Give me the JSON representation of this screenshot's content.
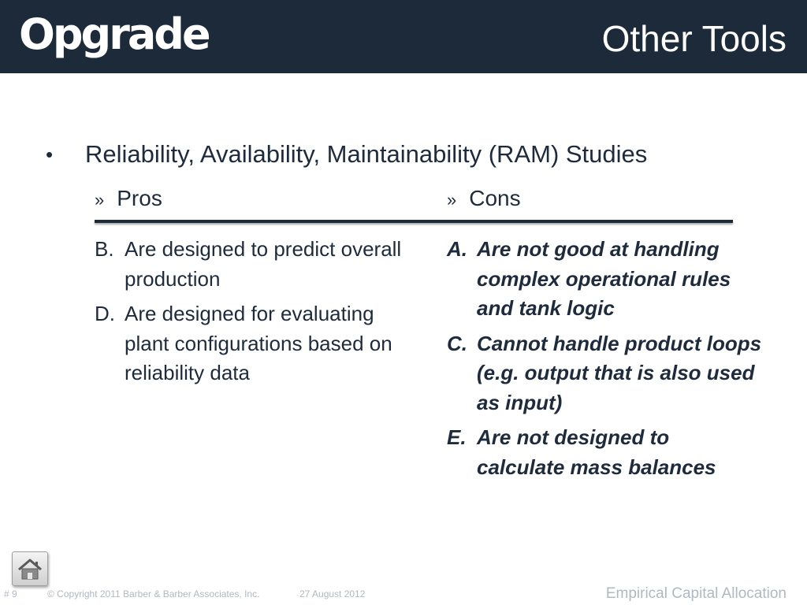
{
  "header": {
    "logo_text": "Opgrade",
    "title": "Other Tools"
  },
  "content": {
    "bullet_symbol": "•",
    "main_bullet": "Reliability, Availability, Maintainability (RAM) Studies",
    "pros": {
      "marker": "»",
      "heading": "Pros",
      "items": [
        {
          "letter": "B.",
          "text": "Are designed to predict overall production"
        },
        {
          "letter": "D.",
          "text": "Are designed for evaluating plant configurations based on reliability data"
        }
      ]
    },
    "cons": {
      "marker": "»",
      "heading": "Cons",
      "items": [
        {
          "letter": "A.",
          "text": "Are not good at handling complex operational rules and tank logic"
        },
        {
          "letter": "C.",
          "text": "Cannot handle product loops (e.g. output that is also used as input)"
        },
        {
          "letter": "E.",
          "text": "Are not designed to calculate mass balances"
        }
      ]
    }
  },
  "footer": {
    "slide_number": "# 9",
    "copyright": "© Copyright 2011 Barber & Barber Associates, Inc.",
    "date": "27 August 2012",
    "deck_title": "Empirical Capital Allocation"
  },
  "icons": {
    "home": "home-icon"
  },
  "colors": {
    "header_bg": "#1c2a39",
    "text": "#1e2b3c",
    "footer_text": "#b0b8c2"
  }
}
